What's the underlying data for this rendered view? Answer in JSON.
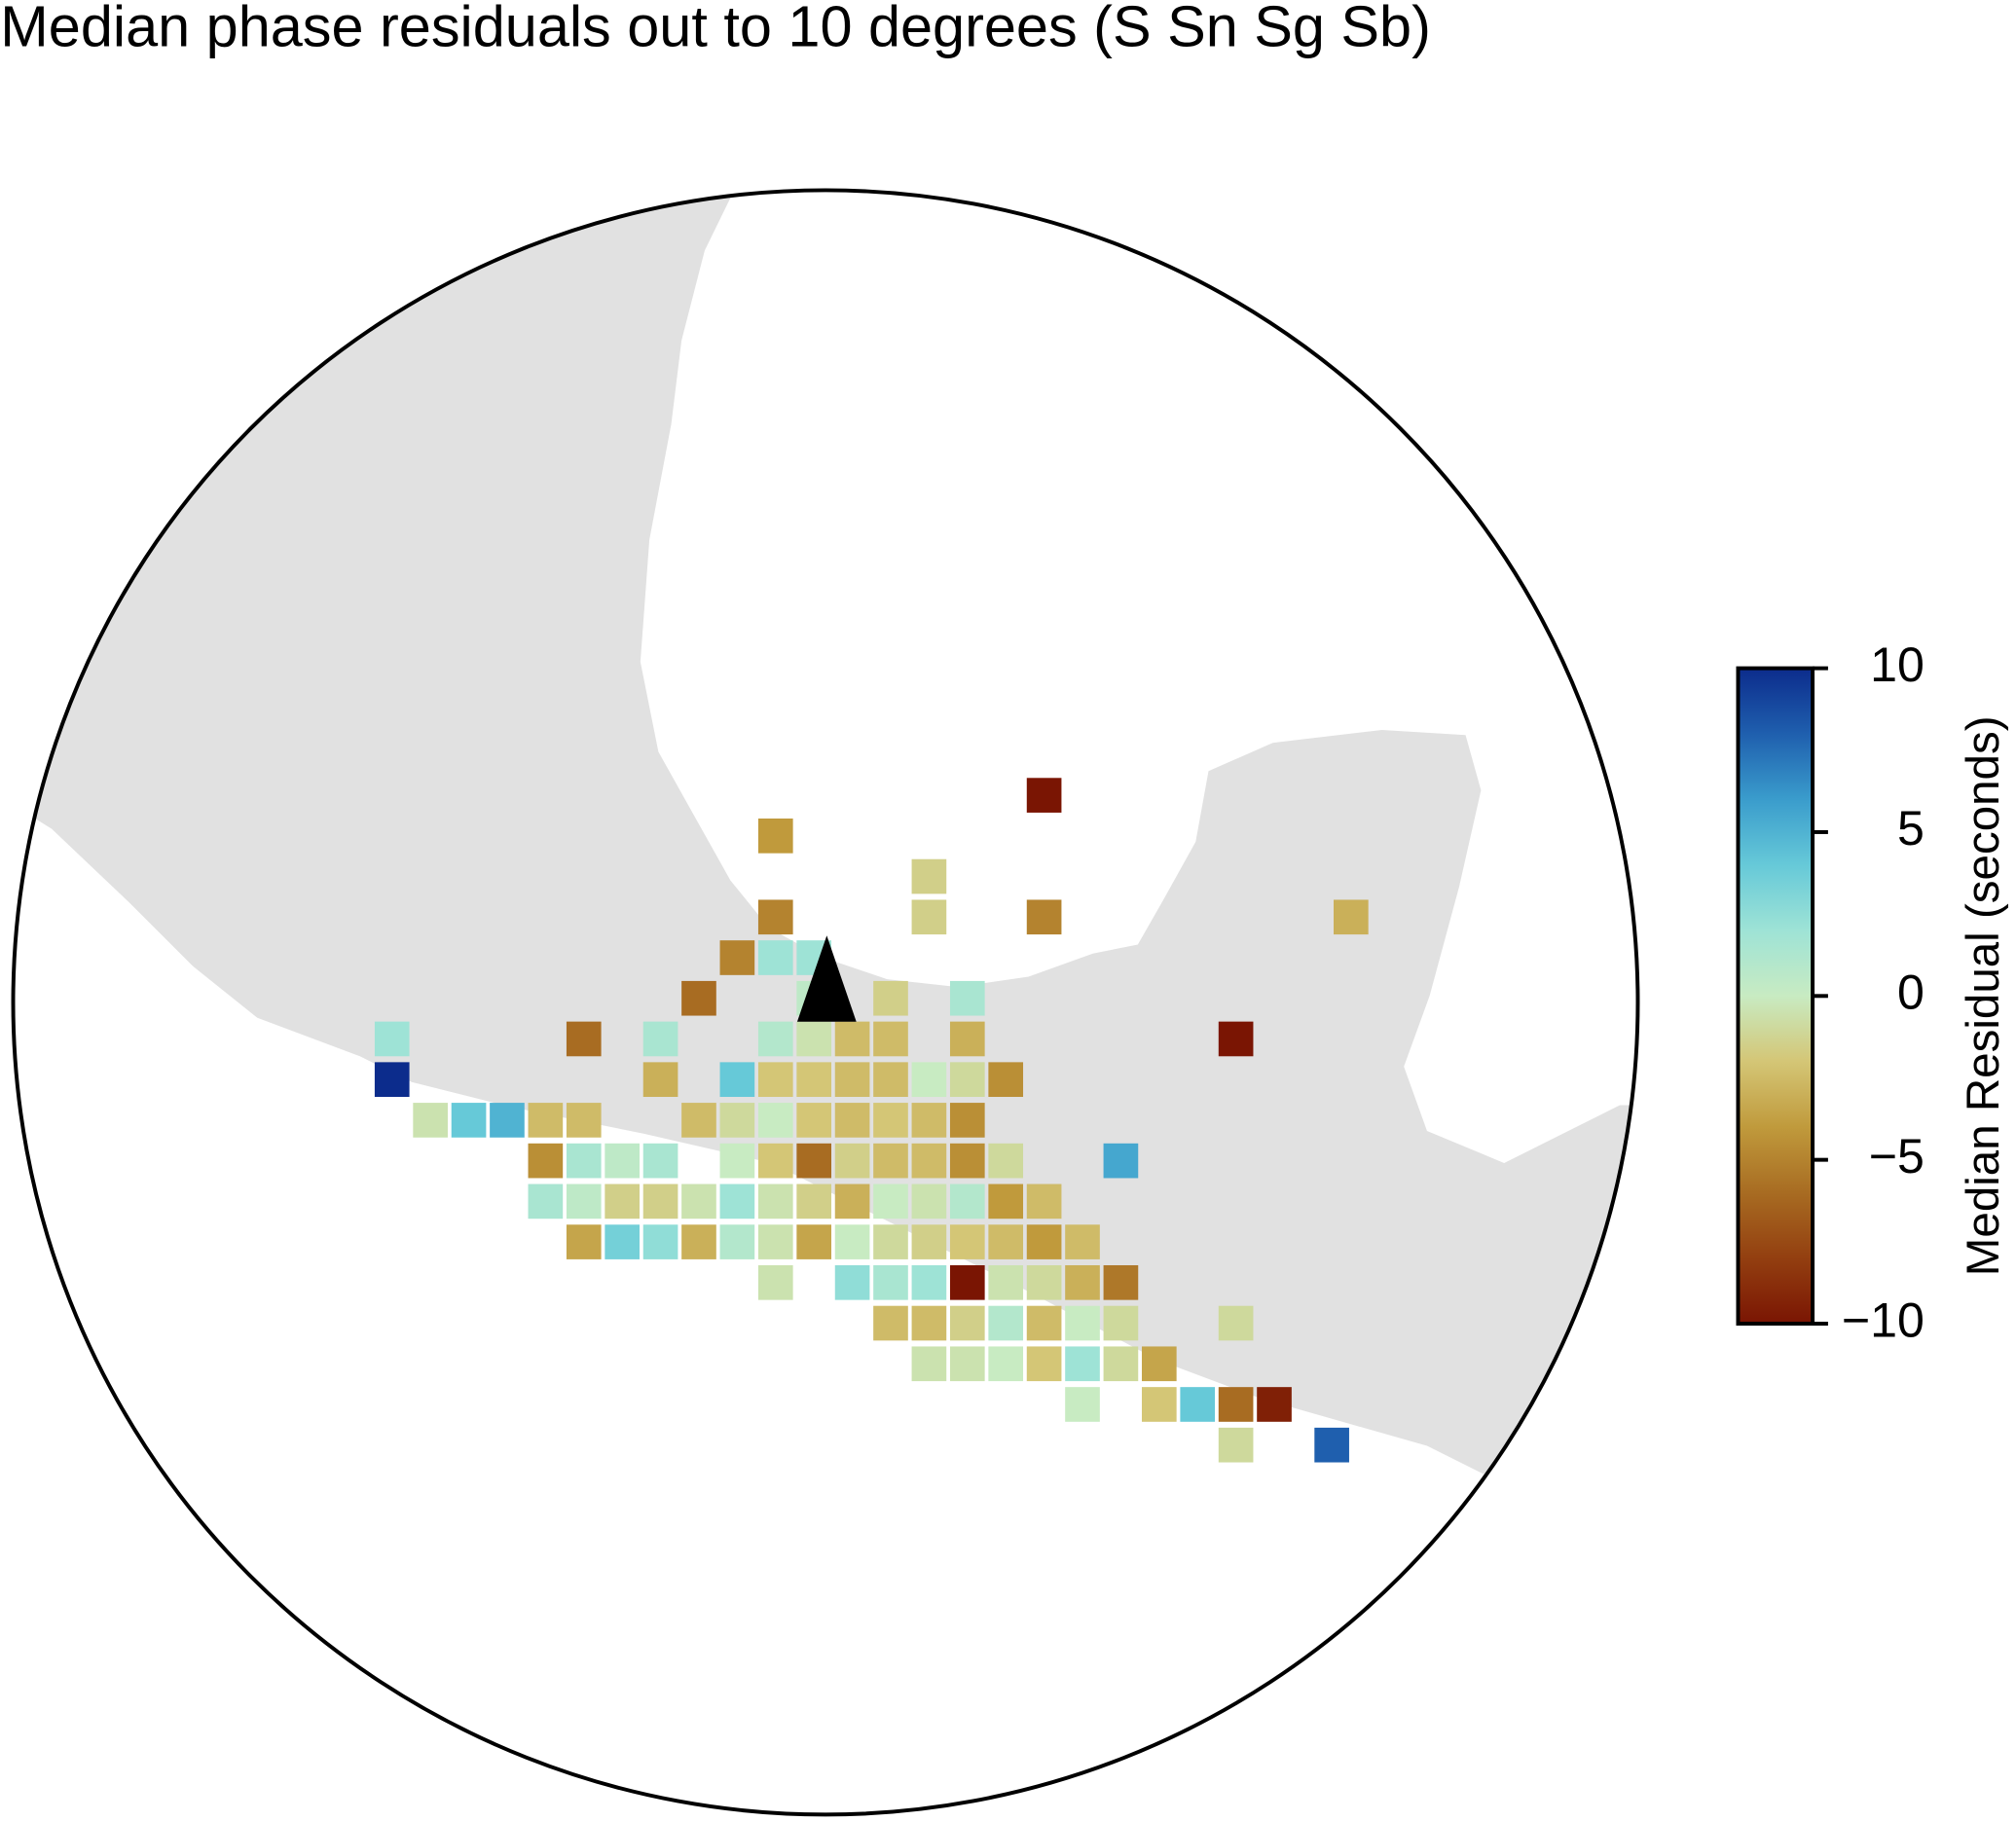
{
  "chart_data": {
    "type": "grid-map",
    "title": "Median phase residuals out to 10 degrees (S Sn Sg Sb)",
    "colorbar_label": "Median Residual (seconds)",
    "center": [
      -96.6,
      19.2
    ],
    "radius_deg": 10,
    "clim": [
      -10,
      10
    ],
    "cticks": [
      {
        "value": -10,
        "label": "−10"
      },
      {
        "value": -5,
        "label": "−5"
      },
      0,
      5,
      10
    ],
    "colormap": [
      "#7a1503",
      "#933f10",
      "#a86c22",
      "#c09a3c",
      "#d4c676",
      "#c8ebc2",
      "#9ee3d6",
      "#66c9d8",
      "#3a9ccc",
      "#1f5fae",
      "#0c2c8c"
    ],
    "cells": [
      {
        "lon": -93.75,
        "lat": 21.75,
        "value": -10
      },
      {
        "lon": -97.25,
        "lat": 21.25,
        "value": -4
      },
      {
        "lon": -95.25,
        "lat": 20.75,
        "value": -1.5
      },
      {
        "lon": -97.25,
        "lat": 20.25,
        "value": -5
      },
      {
        "lon": -95.25,
        "lat": 20.25,
        "value": -1.5
      },
      {
        "lon": -93.75,
        "lat": 20.25,
        "value": -5
      },
      {
        "lon": -89.75,
        "lat": 20.25,
        "value": -3
      },
      {
        "lon": -97.75,
        "lat": 19.75,
        "value": -5
      },
      {
        "lon": -97.25,
        "lat": 19.75,
        "value": 2
      },
      {
        "lon": -96.75,
        "lat": 19.75,
        "value": 2
      },
      {
        "lon": -98.25,
        "lat": 19.25,
        "value": -6
      },
      {
        "lon": -96.75,
        "lat": 19.25,
        "value": 0.5
      },
      {
        "lon": -95.75,
        "lat": 19.25,
        "value": -1.5
      },
      {
        "lon": -94.75,
        "lat": 19.25,
        "value": 1.5
      },
      {
        "lon": -102.25,
        "lat": 18.75,
        "value": 2
      },
      {
        "lon": -99.75,
        "lat": 18.75,
        "value": -6
      },
      {
        "lon": -98.75,
        "lat": 18.75,
        "value": 1.5
      },
      {
        "lon": -97.25,
        "lat": 18.75,
        "value": 1
      },
      {
        "lon": -96.75,
        "lat": 18.75,
        "value": -0.5
      },
      {
        "lon": -96.25,
        "lat": 18.75,
        "value": -2.5
      },
      {
        "lon": -95.75,
        "lat": 18.75,
        "value": -2.5
      },
      {
        "lon": -94.75,
        "lat": 18.75,
        "value": -3
      },
      {
        "lon": -91.25,
        "lat": 18.75,
        "value": -10
      },
      {
        "lon": -102.25,
        "lat": 18.25,
        "value": 10
      },
      {
        "lon": -98.75,
        "lat": 18.25,
        "value": -3
      },
      {
        "lon": -97.75,
        "lat": 18.25,
        "value": 4
      },
      {
        "lon": -97.25,
        "lat": 18.25,
        "value": -2
      },
      {
        "lon": -96.75,
        "lat": 18.25,
        "value": -2
      },
      {
        "lon": -96.25,
        "lat": 18.25,
        "value": -2.5
      },
      {
        "lon": -95.75,
        "lat": 18.25,
        "value": -2.5
      },
      {
        "lon": -95.25,
        "lat": 18.25,
        "value": 0
      },
      {
        "lon": -94.75,
        "lat": 18.25,
        "value": -1
      },
      {
        "lon": -94.25,
        "lat": 18.25,
        "value": -4.5
      },
      {
        "lon": -101.75,
        "lat": 17.75,
        "value": -0.5
      },
      {
        "lon": -101.25,
        "lat": 17.75,
        "value": 4
      },
      {
        "lon": -100.75,
        "lat": 17.75,
        "value": 5
      },
      {
        "lon": -100.25,
        "lat": 17.75,
        "value": -2.5
      },
      {
        "lon": -99.75,
        "lat": 17.75,
        "value": -2.5
      },
      {
        "lon": -98.25,
        "lat": 17.75,
        "value": -2.5
      },
      {
        "lon": -97.75,
        "lat": 17.75,
        "value": -1
      },
      {
        "lon": -97.25,
        "lat": 17.75,
        "value": 0
      },
      {
        "lon": -96.75,
        "lat": 17.75,
        "value": -2
      },
      {
        "lon": -96.25,
        "lat": 17.75,
        "value": -2.5
      },
      {
        "lon": -95.75,
        "lat": 17.75,
        "value": -2
      },
      {
        "lon": -95.25,
        "lat": 17.75,
        "value": -2.5
      },
      {
        "lon": -94.75,
        "lat": 17.75,
        "value": -4.5
      },
      {
        "lon": -100.25,
        "lat": 17.25,
        "value": -4.5
      },
      {
        "lon": -99.75,
        "lat": 17.25,
        "value": 1.5
      },
      {
        "lon": -99.25,
        "lat": 17.25,
        "value": 0.5
      },
      {
        "lon": -98.75,
        "lat": 17.25,
        "value": 1.5
      },
      {
        "lon": -97.75,
        "lat": 17.25,
        "value": 0
      },
      {
        "lon": -97.25,
        "lat": 17.25,
        "value": -2
      },
      {
        "lon": -96.75,
        "lat": 17.25,
        "value": -6
      },
      {
        "lon": -96.25,
        "lat": 17.25,
        "value": -1.5
      },
      {
        "lon": -95.75,
        "lat": 17.25,
        "value": -2.5
      },
      {
        "lon": -95.25,
        "lat": 17.25,
        "value": -2.5
      },
      {
        "lon": -94.75,
        "lat": 17.25,
        "value": -4.5
      },
      {
        "lon": -94.25,
        "lat": 17.25,
        "value": -1
      },
      {
        "lon": -92.75,
        "lat": 17.25,
        "value": 5.5
      },
      {
        "lon": -100.25,
        "lat": 16.75,
        "value": 1.5
      },
      {
        "lon": -99.75,
        "lat": 16.75,
        "value": 0.5
      },
      {
        "lon": -99.25,
        "lat": 16.75,
        "value": -1.5
      },
      {
        "lon": -98.75,
        "lat": 16.75,
        "value": -1.5
      },
      {
        "lon": -98.25,
        "lat": 16.75,
        "value": -0.5
      },
      {
        "lon": -97.75,
        "lat": 16.75,
        "value": 2
      },
      {
        "lon": -97.25,
        "lat": 16.75,
        "value": -0.5
      },
      {
        "lon": -96.75,
        "lat": 16.75,
        "value": -1.5
      },
      {
        "lon": -96.25,
        "lat": 16.75,
        "value": -3
      },
      {
        "lon": -95.75,
        "lat": 16.75,
        "value": 0
      },
      {
        "lon": -95.25,
        "lat": 16.75,
        "value": -0.5
      },
      {
        "lon": -94.75,
        "lat": 16.75,
        "value": 1
      },
      {
        "lon": -94.25,
        "lat": 16.75,
        "value": -4
      },
      {
        "lon": -93.75,
        "lat": 16.75,
        "value": -2.5
      },
      {
        "lon": -99.75,
        "lat": 16.25,
        "value": -3.5
      },
      {
        "lon": -99.25,
        "lat": 16.25,
        "value": 3.5
      },
      {
        "lon": -98.75,
        "lat": 16.25,
        "value": 2.5
      },
      {
        "lon": -98.25,
        "lat": 16.25,
        "value": -3
      },
      {
        "lon": -97.75,
        "lat": 16.25,
        "value": 1
      },
      {
        "lon": -97.25,
        "lat": 16.25,
        "value": -0.5
      },
      {
        "lon": -96.75,
        "lat": 16.25,
        "value": -3.5
      },
      {
        "lon": -96.25,
        "lat": 16.25,
        "value": 0
      },
      {
        "lon": -95.75,
        "lat": 16.25,
        "value": -1
      },
      {
        "lon": -95.25,
        "lat": 16.25,
        "value": -1.5
      },
      {
        "lon": -94.75,
        "lat": 16.25,
        "value": -2
      },
      {
        "lon": -94.25,
        "lat": 16.25,
        "value": -2.5
      },
      {
        "lon": -93.75,
        "lat": 16.25,
        "value": -4
      },
      {
        "lon": -93.25,
        "lat": 16.25,
        "value": -2.5
      },
      {
        "lon": -97.25,
        "lat": 15.75,
        "value": -0.5
      },
      {
        "lon": -96.25,
        "lat": 15.75,
        "value": 2.5
      },
      {
        "lon": -95.75,
        "lat": 15.75,
        "value": 1.5
      },
      {
        "lon": -95.25,
        "lat": 15.75,
        "value": 2
      },
      {
        "lon": -94.75,
        "lat": 15.75,
        "value": -10
      },
      {
        "lon": -94.25,
        "lat": 15.75,
        "value": -0.5
      },
      {
        "lon": -93.75,
        "lat": 15.75,
        "value": -1
      },
      {
        "lon": -93.25,
        "lat": 15.75,
        "value": -3
      },
      {
        "lon": -92.75,
        "lat": 15.75,
        "value": -5.5
      },
      {
        "lon": -95.75,
        "lat": 15.25,
        "value": -2.5
      },
      {
        "lon": -95.25,
        "lat": 15.25,
        "value": -2.5
      },
      {
        "lon": -94.75,
        "lat": 15.25,
        "value": -1.5
      },
      {
        "lon": -94.25,
        "lat": 15.25,
        "value": 1
      },
      {
        "lon": -93.75,
        "lat": 15.25,
        "value": -2.5
      },
      {
        "lon": -93.25,
        "lat": 15.25,
        "value": 0
      },
      {
        "lon": -92.75,
        "lat": 15.25,
        "value": -1
      },
      {
        "lon": -91.25,
        "lat": 15.25,
        "value": -1
      },
      {
        "lon": -95.25,
        "lat": 14.75,
        "value": -0.5
      },
      {
        "lon": -94.75,
        "lat": 14.75,
        "value": -0.5
      },
      {
        "lon": -94.25,
        "lat": 14.75,
        "value": 0
      },
      {
        "lon": -93.75,
        "lat": 14.75,
        "value": -2
      },
      {
        "lon": -93.25,
        "lat": 14.75,
        "value": 2
      },
      {
        "lon": -92.75,
        "lat": 14.75,
        "value": -1
      },
      {
        "lon": -92.25,
        "lat": 14.75,
        "value": -3.5
      },
      {
        "lon": -93.25,
        "lat": 14.25,
        "value": 0
      },
      {
        "lon": -92.25,
        "lat": 14.25,
        "value": -2
      },
      {
        "lon": -91.75,
        "lat": 14.25,
        "value": 4
      },
      {
        "lon": -91.25,
        "lat": 14.25,
        "value": -6
      },
      {
        "lon": -90.75,
        "lat": 14.25,
        "value": -9.5
      },
      {
        "lon": -91.25,
        "lat": 13.75,
        "value": -1
      },
      {
        "lon": -90.0,
        "lat": 13.75,
        "value": 8
      }
    ]
  }
}
